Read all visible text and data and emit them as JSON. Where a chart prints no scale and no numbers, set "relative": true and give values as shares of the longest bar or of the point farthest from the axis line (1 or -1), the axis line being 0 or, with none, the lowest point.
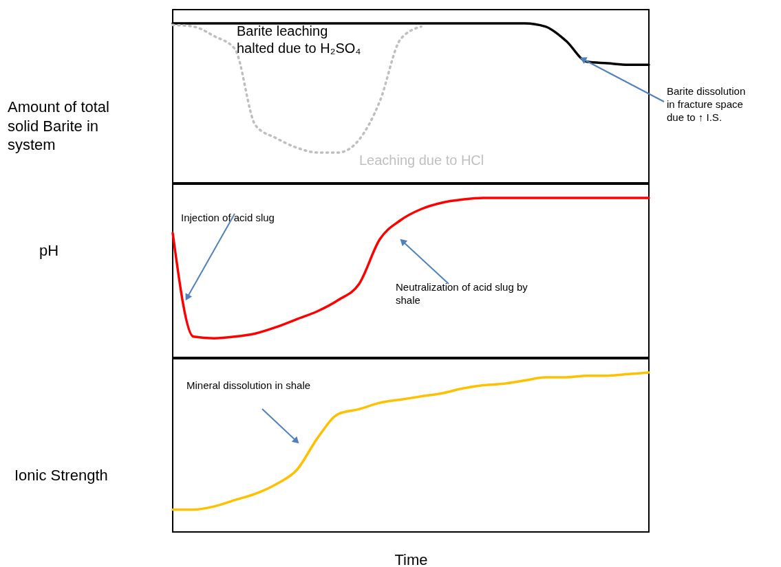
{
  "chart_data": [
    {
      "type": "line",
      "relative": true,
      "tick_labels": false,
      "ylabel": "Amount of total solid Barite in system",
      "categories": [
        null,
        null,
        null,
        null,
        null,
        null,
        null,
        null,
        null,
        null,
        null,
        null,
        null,
        null,
        null,
        null,
        null,
        null,
        null,
        null,
        null,
        null,
        null,
        null
      ],
      "series": [
        {
          "color": "#000000",
          "line_style": "solid",
          "values": [
            1,
            1,
            1,
            1,
            1,
            1,
            1,
            1,
            1,
            1,
            1,
            1,
            1,
            1,
            1,
            1,
            1,
            1,
            0.98,
            0.89,
            0.76,
            0.75,
            0.74,
            0.74
          ]
        },
        {
          "name": "Leaching due to HCl",
          "color": "#bfbfbf",
          "line_style": "dotted",
          "values": [
            0.99,
            0.98,
            0.92,
            0.84,
            0.36,
            0.28,
            0.22,
            0.19,
            0.19,
            0.27,
            0.51,
            0.9,
            0.98,
            null,
            null,
            null,
            null,
            null,
            null,
            null,
            null,
            null,
            null,
            null
          ]
        }
      ],
      "annotations": [
        "Barite leaching halted due to H₂SO₄",
        "Barite dissolution in fracture space due to ↑ I.S."
      ]
    },
    {
      "type": "line",
      "relative": true,
      "tick_labels": false,
      "ylabel": "pH",
      "categories": [
        null,
        null,
        null,
        null,
        null,
        null,
        null,
        null,
        null,
        null,
        null,
        null,
        null,
        null,
        null,
        null,
        null,
        null,
        null,
        null,
        null,
        null,
        null,
        null
      ],
      "series": [
        {
          "color": "#ff0000",
          "line_style": "solid",
          "values": [
            0.78,
            0.13,
            0.12,
            0.13,
            0.15,
            0.19,
            0.24,
            0.29,
            0.36,
            0.46,
            0.74,
            0.86,
            0.93,
            0.97,
            0.99,
            1,
            1,
            1,
            1,
            1,
            1,
            1,
            1,
            1
          ]
        }
      ],
      "annotations": [
        "Injection of acid slug",
        "Neutralization of acid slug by shale"
      ]
    },
    {
      "type": "line",
      "relative": true,
      "tick_labels": false,
      "ylabel": "Ionic Strength",
      "xlabel": "Time",
      "categories": [
        null,
        null,
        null,
        null,
        null,
        null,
        null,
        null,
        null,
        null,
        null,
        null,
        null,
        null,
        null,
        null,
        null,
        null,
        null,
        null,
        null,
        null,
        null,
        null
      ],
      "series": [
        {
          "color": "#ffc000",
          "line_style": "solid",
          "values": [
            0.14,
            0.14,
            0.16,
            0.2,
            0.24,
            0.3,
            0.39,
            0.59,
            0.74,
            0.77,
            0.81,
            0.83,
            0.85,
            0.87,
            0.9,
            0.92,
            0.93,
            0.95,
            0.97,
            0.97,
            0.98,
            0.98,
            0.99,
            1
          ]
        }
      ],
      "annotations": [
        "Mineral dissolution in shale"
      ]
    }
  ]
}
